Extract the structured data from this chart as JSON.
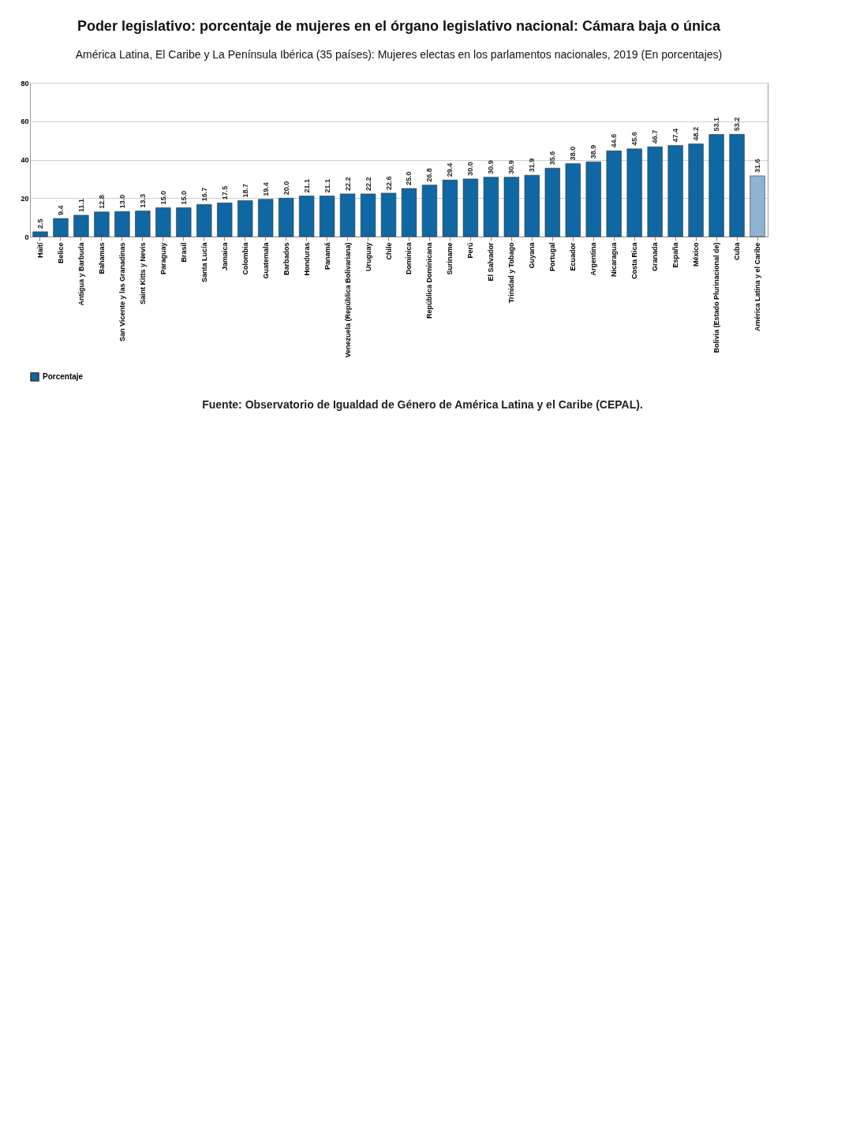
{
  "chart_data": {
    "type": "bar",
    "title": "Poder legislativo: porcentaje de mujeres en el órgano legislativo nacional: Cámara baja o única",
    "subtitle": "América Latina, El Caribe y La Península Ibérica (35 países): Mujeres electas en los parlamentos nacionales, 2019 (En porcentajes)",
    "categories": [
      "Haití",
      "Belice",
      "Antigua y Barbuda",
      "Bahamas",
      "San Vicente y las Granadinas",
      "Saint Kitts y Nevis",
      "Paraguay",
      "Brasil",
      "Santa Lucía",
      "Jamaica",
      "Colombia",
      "Guatemala",
      "Barbados",
      "Honduras",
      "Panamá",
      "Venezuela (República Bolivariana)",
      "Uruguay",
      "Chile",
      "Dominica",
      "República Dominicana",
      "Suriname",
      "Perú",
      "El Salvador",
      "Trinidad y Tobago",
      "Guyana",
      "Portugal",
      "Ecuador",
      "Argentina",
      "Nicaragua",
      "Costa Rica",
      "Granada",
      "España",
      "México",
      "Bolivia (Estado Plurinacional de)",
      "Cuba",
      "América Latina y el Caribe"
    ],
    "series": [
      {
        "name": "Porcentaje",
        "color": "#0f68a3",
        "colors": [
          "#0f68a3",
          "#0f68a3",
          "#0f68a3",
          "#0f68a3",
          "#0f68a3",
          "#0f68a3",
          "#0f68a3",
          "#0f68a3",
          "#0f68a3",
          "#0f68a3",
          "#0f68a3",
          "#0f68a3",
          "#0f68a3",
          "#0f68a3",
          "#0f68a3",
          "#0f68a3",
          "#0f68a3",
          "#0f68a3",
          "#0f68a3",
          "#0f68a3",
          "#0f68a3",
          "#0f68a3",
          "#0f68a3",
          "#0f68a3",
          "#0f68a3",
          "#0f68a3",
          "#0f68a3",
          "#0f68a3",
          "#0f68a3",
          "#0f68a3",
          "#0f68a3",
          "#0f68a3",
          "#0f68a3",
          "#0f68a3",
          "#0f68a3",
          "#8fb3d5"
        ],
        "values": [
          2.5,
          9.4,
          11.1,
          12.8,
          13.0,
          13.3,
          15.0,
          15.0,
          16.7,
          17.5,
          18.7,
          19.4,
          20.0,
          21.1,
          21.1,
          22.2,
          22.2,
          22.6,
          25.0,
          26.8,
          29.4,
          30.0,
          30.9,
          30.9,
          31.9,
          35.6,
          38.0,
          38.9,
          44.6,
          45.6,
          46.7,
          47.4,
          48.2,
          53.1,
          53.2,
          31.6
        ]
      }
    ],
    "value_labels": [
      "2.5",
      "9.4",
      "11.1",
      "12.8",
      "13.0",
      "13.3",
      "15.0",
      "15.0",
      "16.7",
      "17.5",
      "18.7",
      "19.4",
      "20.0",
      "21.1",
      "21.1",
      "22.2",
      "22.2",
      "22.6",
      "25.0",
      "26.8",
      "29.4",
      "30.0",
      "30.9",
      "30.9",
      "31.9",
      "35.6",
      "38.0",
      "38.9",
      "44.6",
      "45.6",
      "46.7",
      "47.4",
      "48.2",
      "53.1",
      "53.2",
      "31.6"
    ],
    "ylim": [
      0,
      80
    ],
    "yticks": [
      0,
      20,
      40,
      60,
      80
    ],
    "grid": "y",
    "legend": "bottom",
    "annotations": [
      "Fuente: Observatorio de Igualdad de Género de América Latina y el Caribe (CEPAL)."
    ]
  }
}
